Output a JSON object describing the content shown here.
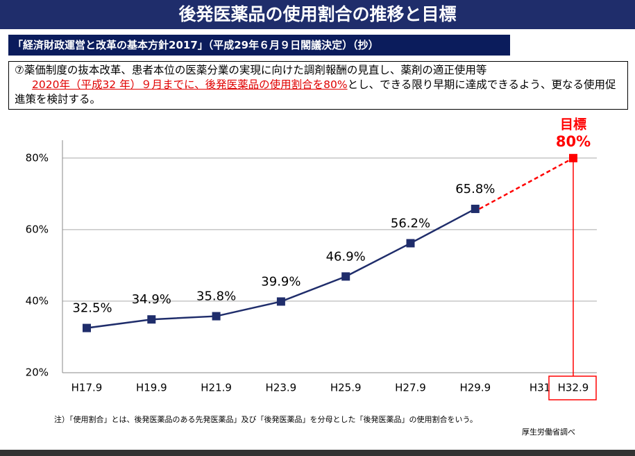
{
  "header": {
    "title": "後発医薬品の使用割合の推移と目標",
    "subtitle": "「経済財政運営と改革の基本方針2017」（平成29年６月９日閣議決定）（抄）"
  },
  "box": {
    "line1": "⑦薬価制度の抜本改革、患者本位の医薬分業の実現に向けた調剤報酬の見直し、薬剤の適正使用等",
    "highlight": "2020年（平成32 年）９月までに、後発医薬品の使用割合を80%",
    "rest": "とし、できる限り早期に達成できるよう、更なる使用促進策を検討する。"
  },
  "chart_data": {
    "type": "line",
    "categories": [
      "H17.9",
      "H19.9",
      "H21.9",
      "H23.9",
      "H25.9",
      "H27.9",
      "H29.9",
      "H31",
      "H32.9"
    ],
    "values": [
      32.5,
      34.9,
      35.8,
      39.9,
      46.9,
      56.2,
      65.8,
      null,
      null
    ],
    "value_labels": [
      "32.5%",
      "34.9%",
      "35.8%",
      "39.9%",
      "46.9%",
      "56.2%",
      "65.8%",
      null,
      null
    ],
    "color": "#1f2d6b",
    "target": {
      "label": "目標",
      "value": 80,
      "value_label": "80%",
      "color": "#ff0000"
    },
    "ylim": [
      20,
      85
    ],
    "yticks": [
      {
        "value": 20,
        "label": "20%"
      },
      {
        "value": 40,
        "label": "40%"
      },
      {
        "value": 60,
        "label": "60%"
      },
      {
        "value": 80,
        "label": "80%"
      }
    ],
    "grid": true
  },
  "footer": {
    "note": "注）「使用割合」とは、後発医薬品のある先発医薬品」及び「後発医薬品」を分母とした「後発医薬品」の使用割合をいう。",
    "source": "厚生労働省調べ"
  }
}
